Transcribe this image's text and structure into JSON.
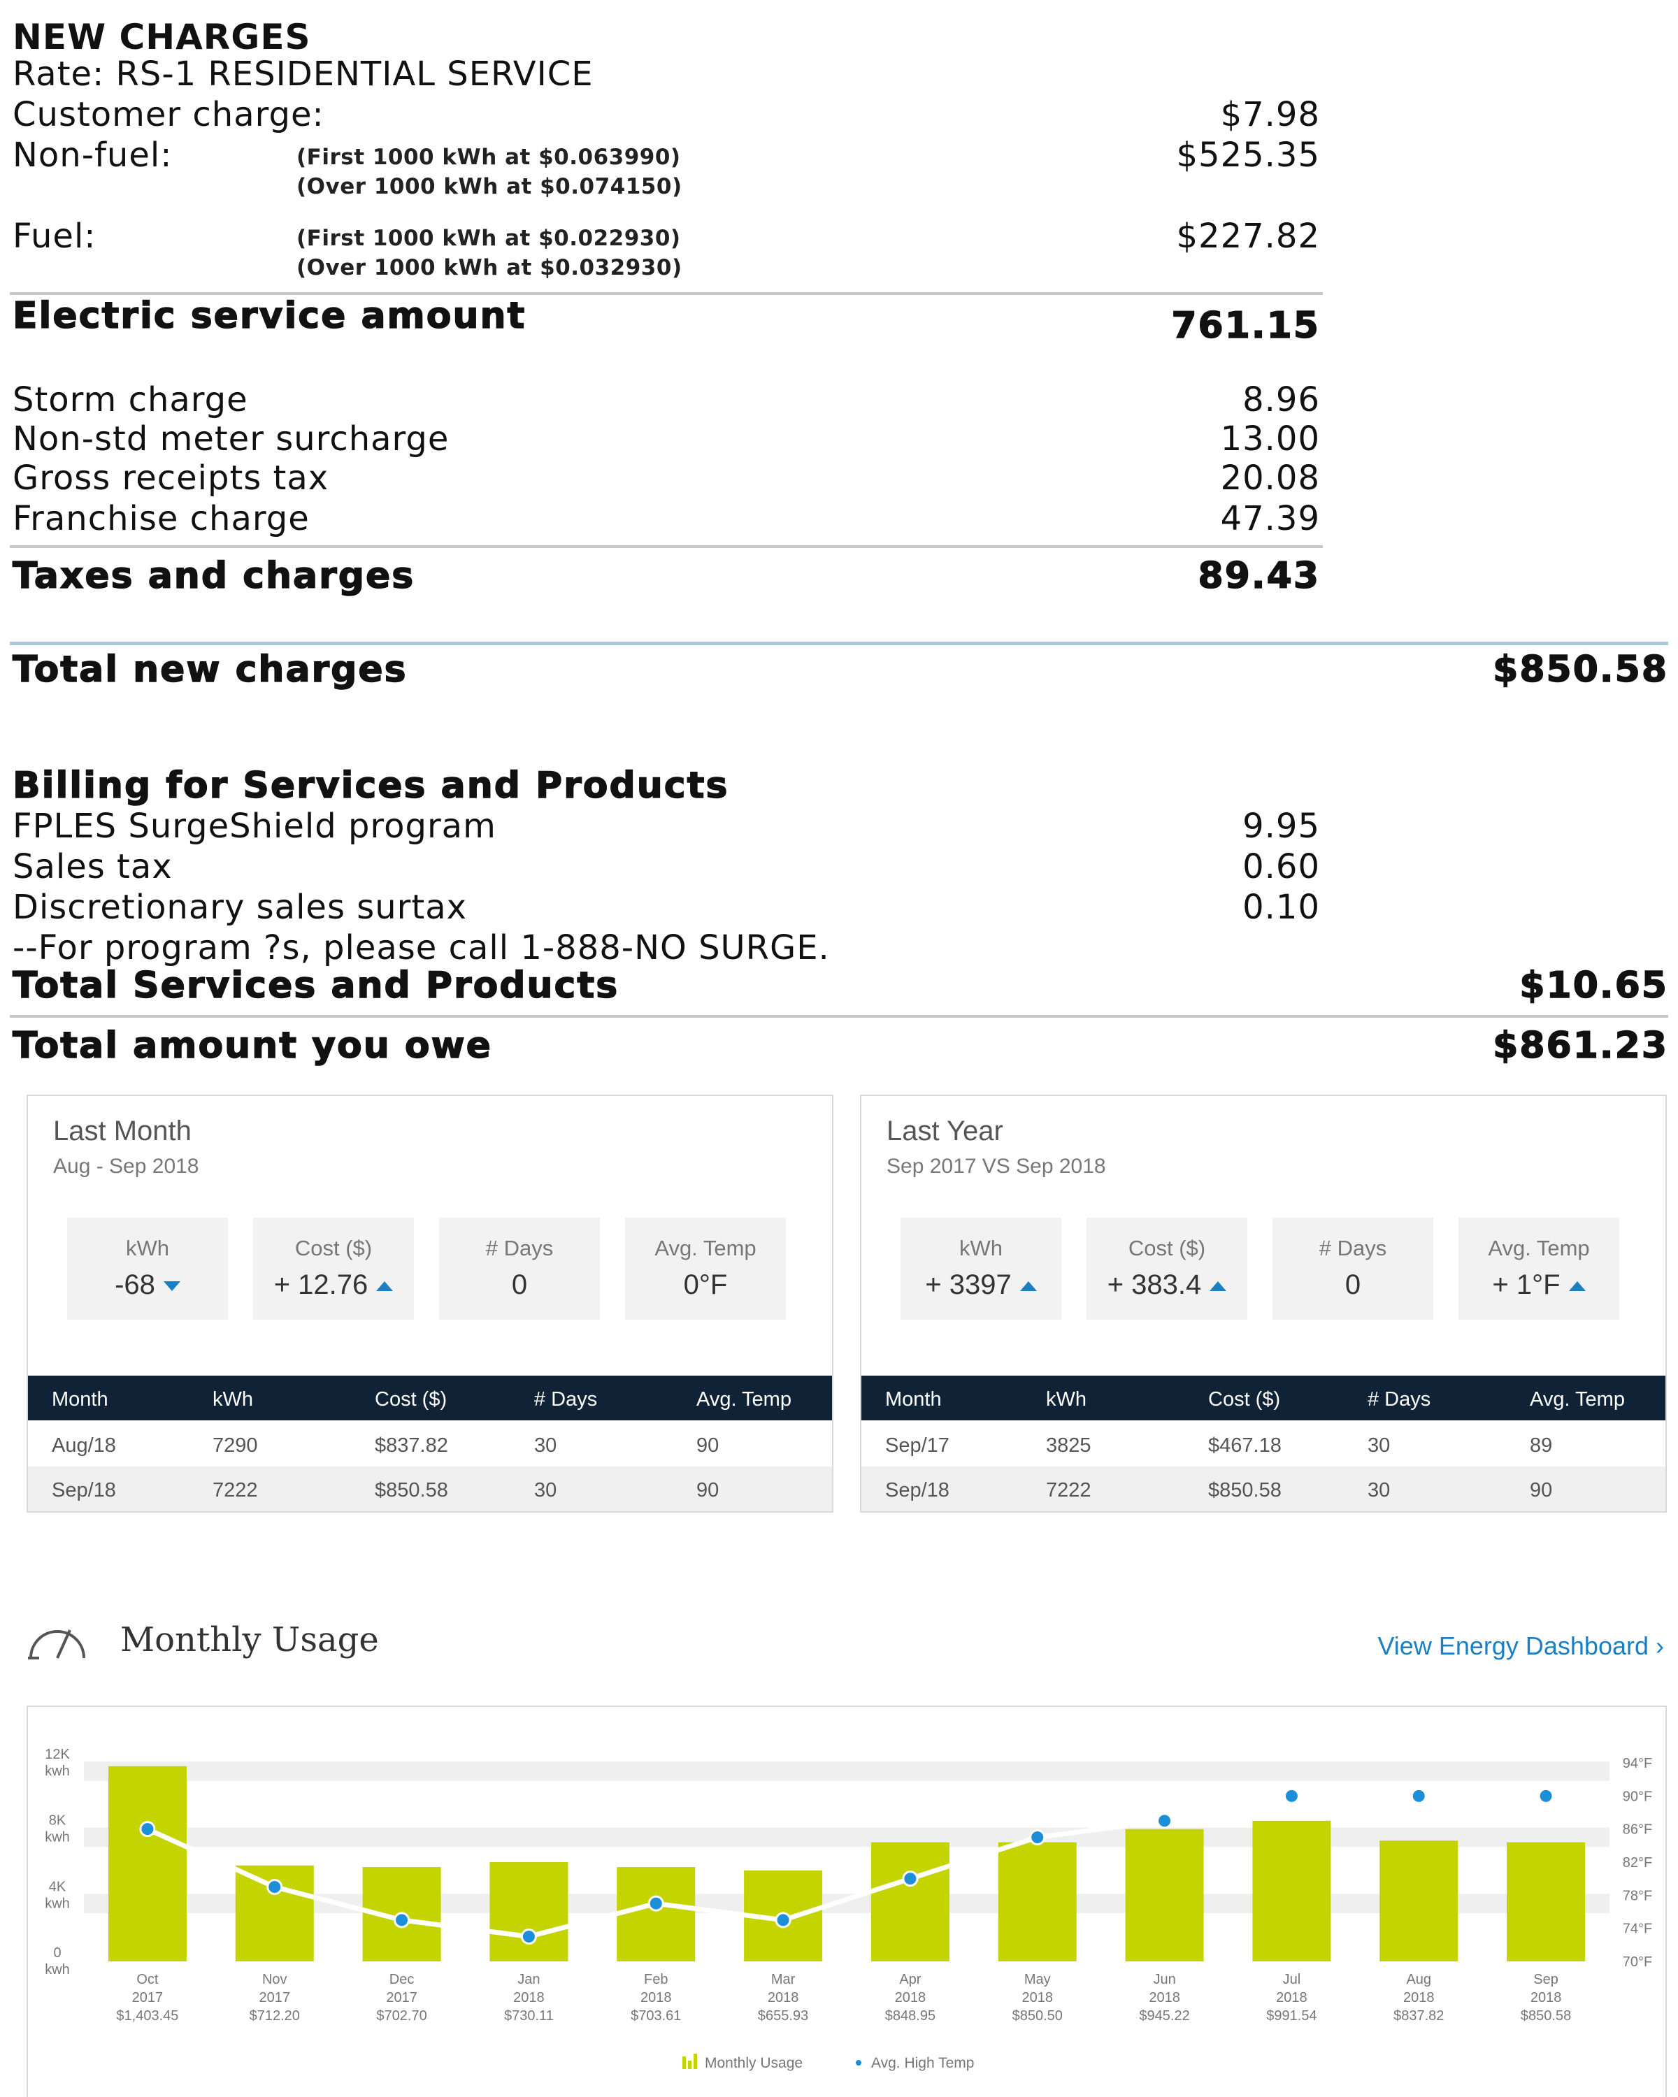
{
  "bill": {
    "new_charges_title": "NEW CHARGES",
    "rate": "Rate: RS-1 RESIDENTIAL SERVICE",
    "customer_charge": {
      "label": "Customer charge:",
      "amount": "$7.98"
    },
    "non_fuel": {
      "label": "Non-fuel:",
      "note1": "(First 1000 kWh at $0.063990)",
      "note2": "(Over 1000 kWh at $0.074150)",
      "amount": "$525.35"
    },
    "fuel": {
      "label": "Fuel:",
      "note1": "(First 1000 kWh at $0.022930)",
      "note2": "(Over 1000 kWh at $0.032930)",
      "amount": "$227.82"
    },
    "electric_service": {
      "label": "Electric service amount",
      "amount": "761.15"
    },
    "storm_charge": {
      "label": "Storm charge",
      "amount": "8.96"
    },
    "non_std_meter": {
      "label": "Non-std meter surcharge",
      "amount": "13.00"
    },
    "gross_receipts": {
      "label": "Gross receipts tax",
      "amount": "20.08"
    },
    "franchise": {
      "label": "Franchise charge",
      "amount": "47.39"
    },
    "taxes_charges": {
      "label": "Taxes and charges",
      "amount": "89.43"
    },
    "total_new": {
      "label": "Total new charges",
      "amount": "$850.58"
    },
    "billing_title": "Billing for Services and Products",
    "surgeshield": {
      "label": "FPLES SurgeShield program",
      "amount": "9.95"
    },
    "sales_tax": {
      "label": "Sales tax",
      "amount": "0.60"
    },
    "surtax": {
      "label": "Discretionary sales surtax",
      "amount": "0.10"
    },
    "program_note": "--For program ?s, please call 1-888-NO SURGE.",
    "total_services": {
      "label": "Total Services and Products",
      "amount": "$10.65"
    },
    "total_owe": {
      "label": "Total amount you owe",
      "amount": "$861.23"
    }
  },
  "last_month": {
    "title": "Last Month",
    "subtitle": "Aug - Sep 2018",
    "tiles": [
      {
        "label": "kWh",
        "value": "-68",
        "trend": "down"
      },
      {
        "label": "Cost ($)",
        "value": "+ 12.76",
        "trend": "up"
      },
      {
        "label": "# Days",
        "value": "0",
        "trend": "none"
      },
      {
        "label": "Avg. Temp",
        "value": "0°F",
        "trend": "none"
      }
    ],
    "columns": [
      "Month",
      "kWh",
      "Cost ($)",
      "# Days",
      "Avg. Temp"
    ],
    "rows": [
      [
        "Aug/18",
        "7290",
        "$837.82",
        "30",
        "90"
      ],
      [
        "Sep/18",
        "7222",
        "$850.58",
        "30",
        "90"
      ]
    ]
  },
  "last_year": {
    "title": "Last Year",
    "subtitle": "Sep 2017 VS Sep 2018",
    "tiles": [
      {
        "label": "kWh",
        "value": "+ 3397",
        "trend": "up"
      },
      {
        "label": "Cost ($)",
        "value": "+ 383.4",
        "trend": "up"
      },
      {
        "label": "# Days",
        "value": "0",
        "trend": "none"
      },
      {
        "label": "Avg. Temp",
        "value": "+ 1°F",
        "trend": "up"
      }
    ],
    "columns": [
      "Month",
      "kWh",
      "Cost ($)",
      "# Days",
      "Avg. Temp"
    ],
    "rows": [
      [
        "Sep/17",
        "3825",
        "$467.18",
        "30",
        "89"
      ],
      [
        "Sep/18",
        "7222",
        "$850.58",
        "30",
        "90"
      ]
    ]
  },
  "monthly_usage": {
    "title": "Monthly Usage",
    "link": "View Energy Dashboard ›",
    "icon": "gauge-icon"
  },
  "chart_data": {
    "type": "bar",
    "categories": [
      "Oct 2017",
      "Nov 2017",
      "Dec 2017",
      "Jan 2018",
      "Feb 2018",
      "Mar 2018",
      "Apr 2018",
      "May 2018",
      "Jun 2018",
      "Jul 2018",
      "Aug 2018",
      "Sep 2018"
    ],
    "month_labels": [
      "Oct",
      "Nov",
      "Dec",
      "Jan",
      "Feb",
      "Mar",
      "Apr",
      "May",
      "Jun",
      "Jul",
      "Aug",
      "Sep"
    ],
    "year_labels": [
      "2017",
      "2017",
      "2017",
      "2018",
      "2018",
      "2018",
      "2018",
      "2018",
      "2018",
      "2018",
      "2018",
      "2018"
    ],
    "cost_labels": [
      "$1,403.45",
      "$712.20",
      "$702.70",
      "$730.11",
      "$703.61",
      "$655.93",
      "$848.95",
      "$850.50",
      "$945.22",
      "$991.54",
      "$837.82",
      "$850.58"
    ],
    "series": [
      {
        "name": "Monthly Usage",
        "type": "bar",
        "axis": "left",
        "values": [
          11800,
          5800,
          5700,
          6000,
          5700,
          5500,
          7200,
          7200,
          8000,
          8500,
          7300,
          7200
        ]
      },
      {
        "name": "Avg. High Temp",
        "type": "line",
        "axis": "right",
        "values": [
          86,
          79,
          75,
          73,
          77,
          75,
          80,
          85,
          87,
          90,
          90,
          90
        ],
        "point_only_from_index": 9
      }
    ],
    "left_axis": {
      "ticks": [
        0,
        4000,
        8000,
        12000
      ],
      "tick_labels": [
        "0",
        "4K",
        "8K",
        "12K"
      ],
      "unit": "kwh",
      "range": [
        0,
        12000
      ]
    },
    "right_axis": {
      "ticks": [
        70,
        74,
        78,
        82,
        86,
        90,
        94
      ],
      "tick_labels": [
        "70°F",
        "74°F",
        "78°F",
        "82°F",
        "86°F",
        "90°F",
        "94°F"
      ],
      "range": [
        70,
        94
      ]
    },
    "legend": {
      "position": "bottom-center",
      "items": [
        "Monthly Usage",
        "Avg. High Temp"
      ]
    },
    "colors": {
      "bar": "#c3d400",
      "line": "#ffffff",
      "point": "#1b8fd8",
      "band": "#efefef"
    }
  }
}
